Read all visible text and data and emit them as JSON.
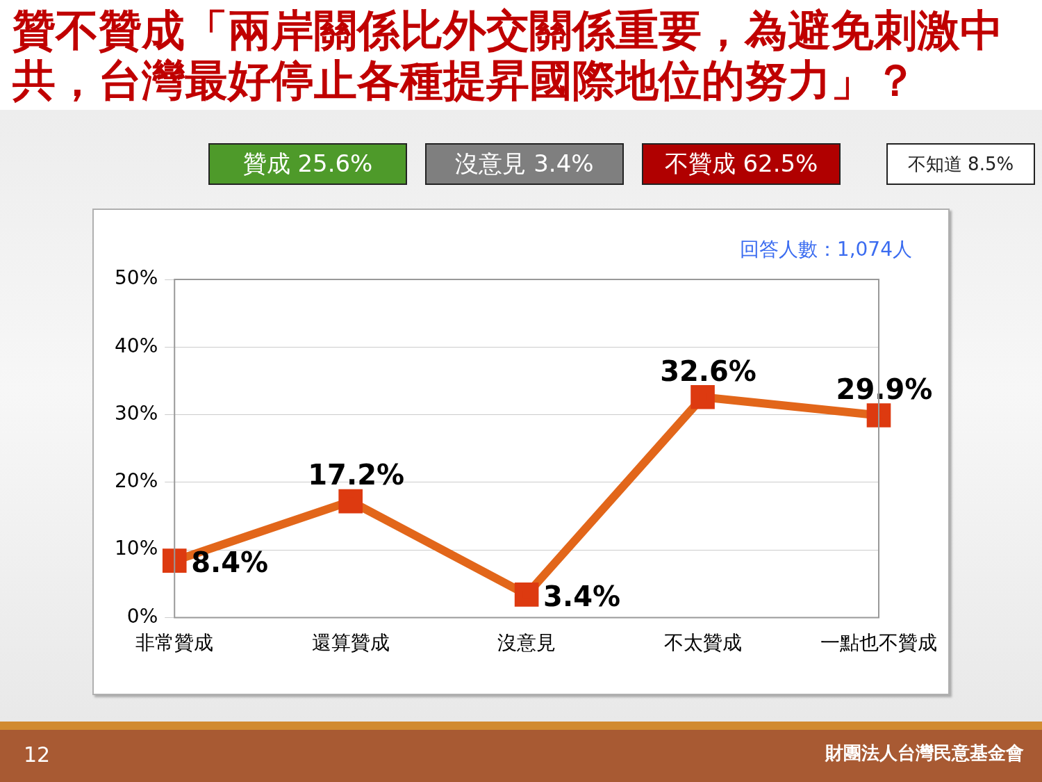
{
  "chart_data": {
    "type": "line",
    "title": "贊不贊成「兩岸關係比外交關係重要，為避免刺激中共，台灣最好停止各種提昇國際地位的努力」？",
    "categories": [
      "非常贊成",
      "還算贊成",
      "沒意見",
      "不太贊成",
      "一點也不贊成"
    ],
    "series": [
      {
        "color": "#e2661a",
        "values": [
          8.4,
          17.2,
          3.4,
          32.6,
          29.9
        ],
        "value_labels": [
          "8.4%",
          "17.2%",
          "3.4%",
          "32.6%",
          "29.9%"
        ]
      }
    ],
    "ylim": [
      0,
      50
    ],
    "yticks": [
      {
        "value": 0,
        "label": "0%"
      },
      {
        "value": 10,
        "label": "10%"
      },
      {
        "value": 20,
        "label": "20%"
      },
      {
        "value": 30,
        "label": "30%"
      },
      {
        "value": 40,
        "label": "40%"
      },
      {
        "value": 50,
        "label": "50%"
      }
    ],
    "grid": "y",
    "marker": "square",
    "line_style": "solid",
    "legend": false,
    "annotations": [
      "贊成 25.6%",
      "沒意見 3.4%",
      "不贊成 62.5%",
      "不知道 8.5%",
      "回答人數：1,074人",
      "12",
      "財團法人台灣民意基金會"
    ]
  }
}
